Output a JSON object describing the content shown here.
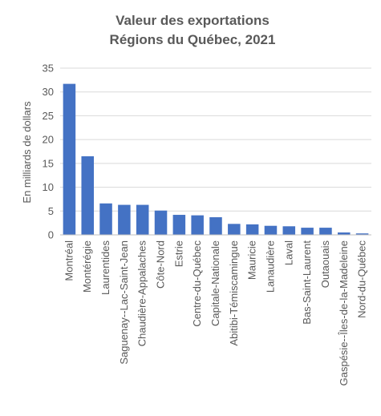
{
  "chart_data": {
    "type": "bar",
    "title": "Valeur des exportations",
    "subtitle": "Régions du Québec, 2021",
    "xlabel": "",
    "ylabel": "En milliards de dollars",
    "ylim": [
      0,
      35
    ],
    "yticks": [
      0,
      5,
      10,
      15,
      20,
      25,
      30,
      35
    ],
    "grid": true,
    "legend": "none",
    "bar_color": "#4472c4",
    "categories": [
      "Montréal",
      "Montérégie",
      "Laurentides",
      "Saguenay--Lac-Saint-Jean",
      "Chaudière-Appalaches",
      "Côte-Nord",
      "Estrie",
      "Centre-du-Québec",
      "Capitale-Nationale",
      "Abitibi-Témiscamingue",
      "Mauricie",
      "Lanaudière",
      "Laval",
      "Bas-Saint-Laurent",
      "Outaouais",
      "Gaspésie--Îles-de-la-Madeleine",
      "Nord-du-Québec"
    ],
    "values": [
      31.7,
      16.5,
      6.6,
      6.3,
      6.3,
      5.1,
      4.2,
      4.1,
      3.7,
      2.3,
      2.2,
      1.9,
      1.8,
      1.5,
      1.5,
      0.5,
      0.3
    ]
  }
}
